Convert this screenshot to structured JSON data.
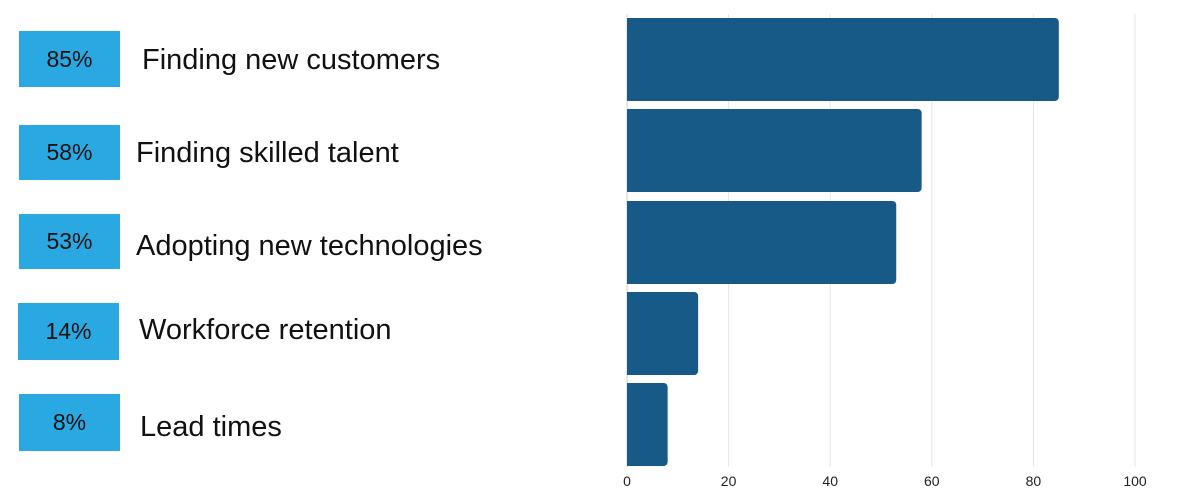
{
  "chart_data": {
    "type": "bar",
    "orientation": "horizontal",
    "title": "",
    "xlabel": "",
    "ylabel": "",
    "xlim": [
      0,
      100
    ],
    "xticks": [
      0,
      20,
      40,
      60,
      80,
      100
    ],
    "grid": true,
    "categories": [
      "Finding new customers",
      "Finding skilled talent",
      "Adopting new technologies",
      "Workforce retention",
      "Lead times"
    ],
    "values": [
      85,
      58,
      53,
      14,
      8
    ],
    "value_labels": [
      "85%",
      "58%",
      "53%",
      "14%",
      "8%"
    ],
    "colors": {
      "bar": "#175a87",
      "badge": "#2aa8e2",
      "grid": "#e6e6e6"
    }
  }
}
